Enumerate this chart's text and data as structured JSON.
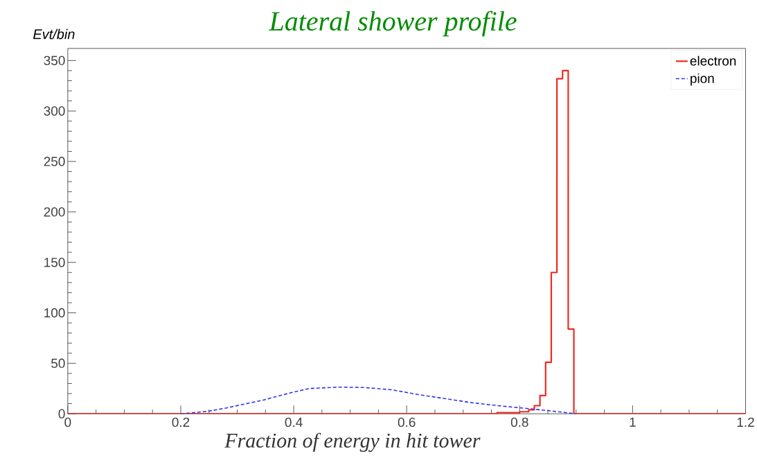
{
  "chart_data": {
    "type": "step",
    "title": "Lateral shower profile",
    "xlabel": "Fraction of energy in hit tower",
    "ylabel": "Evt/bin",
    "xlim": [
      0,
      1.2
    ],
    "ylim": [
      0,
      362
    ],
    "xticks": [
      0,
      0.2,
      0.4,
      0.6,
      0.8,
      1,
      1.2
    ],
    "yticks": [
      0,
      50,
      100,
      150,
      200,
      250,
      300,
      350
    ],
    "legend": "top right",
    "grid": false,
    "series": [
      {
        "name": "electron",
        "color": "#ee2a22",
        "line_style": "solid",
        "x": [
          0,
          0.76,
          0.8,
          0.816,
          0.826,
          0.836,
          0.846,
          0.856,
          0.866,
          0.876,
          0.886,
          0.896,
          1.2
        ],
        "values": [
          0,
          1,
          2,
          4,
          8,
          18,
          51,
          140,
          332,
          340,
          84,
          0,
          0
        ]
      },
      {
        "name": "pion",
        "type": "line",
        "color": "#3333ee",
        "line_style": "dashed",
        "x": [
          0.2,
          0.248,
          0.281,
          0.347,
          0.389,
          0.427,
          0.479,
          0.526,
          0.573,
          0.621,
          0.668,
          0.715,
          0.762,
          0.8,
          0.852,
          0.9
        ],
        "values": [
          0,
          2.4,
          5.8,
          13.7,
          20,
          25,
          26.4,
          26,
          23.8,
          19,
          15,
          11,
          8,
          6,
          3,
          0
        ]
      }
    ]
  }
}
